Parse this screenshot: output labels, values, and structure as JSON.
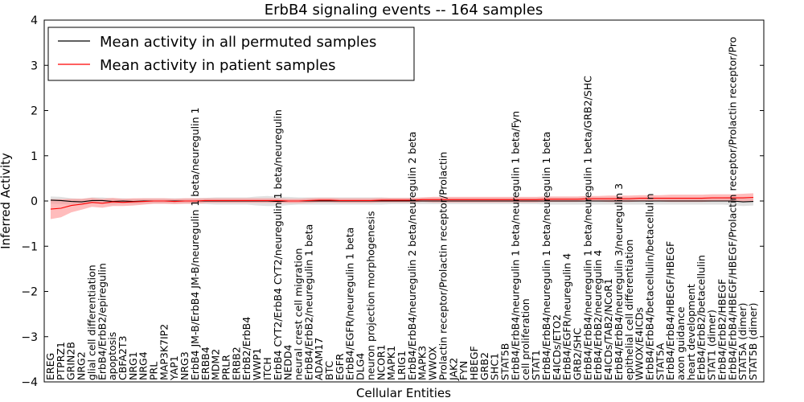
{
  "chart_data": {
    "type": "line",
    "title": "ErbB4 signaling events -- 164 samples",
    "xlabel": "Cellular Entities",
    "ylabel": "Inferred Activity",
    "ylim": [
      -4,
      4
    ],
    "yticks": [
      -4,
      -3,
      -2,
      -1,
      0,
      1,
      2,
      3,
      4
    ],
    "legend_position": "top-left",
    "categories": [
      "EREG",
      "PTPRZ1",
      "GRIN2B",
      "NRG2",
      "glial cell differentiation",
      "ErbB4/ErbB2/epiregulin",
      "apoptosis",
      "CBFA2T3",
      "NRG1",
      "NRG4",
      "PRL",
      "MAP3K7IP2",
      "YAP1",
      "NRG3",
      "ErbB4 JM-B/ErbB4 JM-B/neuregulin 1 beta/neuregulin 1",
      "ERBB4",
      "MDM2",
      "PRLR",
      "ERBB2",
      "ErbB2/ErbB4",
      "WWP1",
      "ITCH",
      "ErbB4 CYT2/ErbB4 CYT2/neuregulin 1 beta/neuregulin",
      "NEDD4",
      "neural crest cell migration",
      "ErbB4/ErbB2/neuregulin 1 beta",
      "ADAM17",
      "BTC",
      "EGFR",
      "ErbB4/EGFR/neuregulin 1 beta",
      "DLG4",
      "neuron projection morphogenesis",
      "NCOR1",
      "MAPK1",
      "LRIG1",
      "ErbB4/ErbB4/neuregulin 2 beta/neuregulin 2 beta",
      "MAPK3",
      "WWOX",
      "Prolactin receptor/Prolactin receptor/Prolactin",
      "JAK2",
      "FYN",
      "HBEGF",
      "GRB2",
      "SHC1",
      "STAT5B",
      "ErbB4/ErbB4/neuregulin 1 beta/neuregulin 1 beta/Fyn",
      "cell proliferation",
      "STAT1",
      "ErbB4/ErbB4/neuregulin 1 beta/neuregulin 1 beta",
      "E4ICDs/ETO2",
      "ErbB4/EGFR/neuregulin 4",
      "GRB2/SHC",
      "ErbB4/ErbB4/neuregulin 1 beta/neuregulin 1 beta/GRB2/SHC",
      "ErbB4/ErbB2/neuregulin 4",
      "E4ICDs/TAB2/NCoR1",
      "ErbB4/ErbB4/neuregulin 3/neuregulin 3",
      "epithelial cell differentiation",
      "WWOX/E4ICDs",
      "ErbB4/ErbB4/betacellulin/betacellulin",
      "STAT5A",
      "ErbB4/ErbB4/HBEGF/HBEGF",
      "axon guidance",
      "heart development",
      "ErbB4/ErbB2/betacellulin",
      "STAT1 (dimer)",
      "ErbB4/ErbB2/HBEGF",
      "ErbB4/ErbB4/HBEGF/HBEGF/Prolactin receptor/Prolactin receptor/Pro",
      "STAT5A (dimer)",
      "STAT5B (dimer)"
    ],
    "series": [
      {
        "name": "Mean activity in all permuted samples",
        "color": "#000000",
        "band_color": "#c8c8c8",
        "values": [
          0.02,
          0.01,
          -0.01,
          -0.02,
          0.01,
          0.01,
          -0.01,
          0.0,
          -0.01,
          0.0,
          0.0,
          0.0,
          0.0,
          0.0,
          0.0,
          0.0,
          0.0,
          0.0,
          0.0,
          0.0,
          0.0,
          0.0,
          -0.01,
          0.0,
          0.0,
          0.0,
          0.0,
          0.0,
          0.0,
          0.0,
          0.0,
          0.0,
          0.0,
          0.0,
          0.0,
          0.0,
          0.0,
          0.0,
          0.0,
          0.0,
          0.0,
          0.0,
          0.0,
          0.0,
          0.0,
          0.0,
          0.0,
          0.0,
          0.0,
          0.0,
          0.0,
          0.0,
          0.0,
          0.0,
          0.0,
          0.0,
          0.0,
          0.0,
          0.0,
          0.0,
          0.0,
          0.0,
          0.0,
          0.0,
          0.0,
          0.0,
          0.0,
          -0.02,
          -0.01
        ],
        "band_halfwidth": [
          0.08,
          0.08,
          0.07,
          0.07,
          0.07,
          0.07,
          0.07,
          0.06,
          0.06,
          0.06,
          0.06,
          0.06,
          0.06,
          0.06,
          0.06,
          0.07,
          0.08,
          0.08,
          0.08,
          0.08,
          0.1,
          0.11,
          0.1,
          0.09,
          0.08,
          0.08,
          0.08,
          0.08,
          0.08,
          0.08,
          0.08,
          0.08,
          0.08,
          0.07,
          0.07,
          0.07,
          0.07,
          0.07,
          0.07,
          0.07,
          0.07,
          0.07,
          0.07,
          0.07,
          0.07,
          0.07,
          0.07,
          0.07,
          0.08,
          0.08,
          0.08,
          0.08,
          0.08,
          0.08,
          0.08,
          0.08,
          0.08,
          0.08,
          0.08,
          0.08,
          0.08,
          0.08,
          0.08,
          0.08,
          0.08,
          0.08,
          0.09,
          0.09,
          0.09
        ]
      },
      {
        "name": "Mean activity in patient samples",
        "color": "#ff0000",
        "band_color": "#ff9090",
        "values": [
          -0.18,
          -0.16,
          -0.1,
          -0.07,
          -0.03,
          -0.05,
          -0.02,
          -0.03,
          -0.02,
          -0.01,
          0.0,
          0.0,
          -0.01,
          0.0,
          0.0,
          0.01,
          0.01,
          0.01,
          0.01,
          0.01,
          0.01,
          0.01,
          0.01,
          0.0,
          0.0,
          0.01,
          0.02,
          0.02,
          0.01,
          0.01,
          0.01,
          0.01,
          0.02,
          0.02,
          0.02,
          0.02,
          0.03,
          0.03,
          0.03,
          0.03,
          0.03,
          0.03,
          0.03,
          0.03,
          0.03,
          0.03,
          0.03,
          0.03,
          0.04,
          0.04,
          0.04,
          0.04,
          0.05,
          0.05,
          0.05,
          0.05,
          0.05,
          0.06,
          0.06,
          0.06,
          0.06,
          0.06,
          0.06,
          0.06,
          0.07,
          0.07,
          0.07,
          0.07,
          0.08
        ],
        "band_halfwidth": [
          0.22,
          0.2,
          0.15,
          0.12,
          0.1,
          0.1,
          0.09,
          0.08,
          0.08,
          0.07,
          0.06,
          0.06,
          0.06,
          0.06,
          0.06,
          0.05,
          0.05,
          0.05,
          0.05,
          0.05,
          0.05,
          0.05,
          0.05,
          0.05,
          0.05,
          0.05,
          0.05,
          0.05,
          0.05,
          0.05,
          0.05,
          0.05,
          0.05,
          0.05,
          0.05,
          0.05,
          0.05,
          0.06,
          0.06,
          0.06,
          0.06,
          0.06,
          0.06,
          0.06,
          0.06,
          0.06,
          0.06,
          0.06,
          0.06,
          0.06,
          0.06,
          0.06,
          0.06,
          0.06,
          0.07,
          0.07,
          0.07,
          0.07,
          0.07,
          0.07,
          0.08,
          0.08,
          0.08,
          0.08,
          0.08,
          0.08,
          0.08,
          0.09,
          0.09
        ]
      }
    ]
  }
}
